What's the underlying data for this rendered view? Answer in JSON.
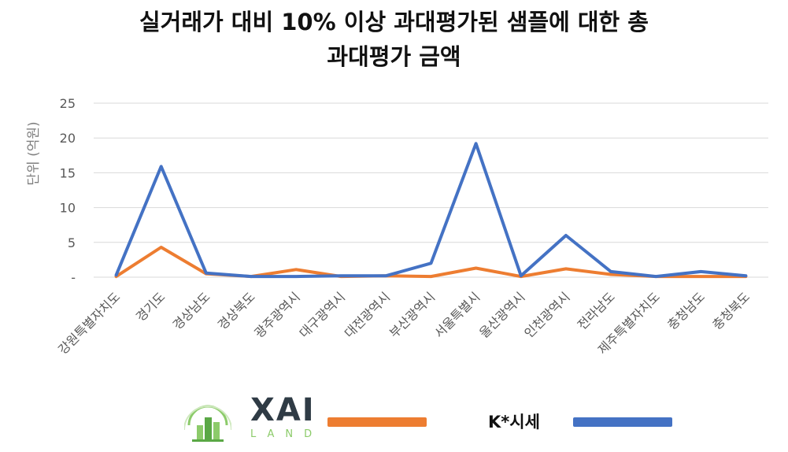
{
  "chart_data": {
    "type": "line",
    "title_line1": "실거래가 대비 10% 이상 과대평가된 샘플에 대한 총",
    "title_line2": "과대평가 금액",
    "ylabel": "단위 (억원)",
    "ylim": [
      0,
      25
    ],
    "yticks": [
      "-",
      "5",
      "10",
      "15",
      "20",
      "25"
    ],
    "grid": true,
    "categories": [
      "강원특별자치도",
      "경기도",
      "경상남도",
      "경상북도",
      "광주광역시",
      "대구광역시",
      "대전광역시",
      "부산광역시",
      "서울특별시",
      "울산광역시",
      "인천광역시",
      "전라남도",
      "제주특별자치도",
      "충청남도",
      "충청북도"
    ],
    "series": [
      {
        "name": "",
        "color": "#ed7d31",
        "values": [
          0.1,
          4.3,
          0.5,
          0.1,
          1.1,
          0.1,
          0.2,
          0.1,
          1.3,
          0.1,
          1.2,
          0.4,
          0.1,
          0.1,
          0.1
        ]
      },
      {
        "name": "K*시세",
        "color": "#4472c4",
        "values": [
          0.3,
          15.9,
          0.6,
          0.1,
          0.1,
          0.2,
          0.2,
          2.0,
          19.2,
          0.2,
          6.0,
          0.8,
          0.1,
          0.8,
          0.2
        ]
      }
    ],
    "legend": {
      "placement": "bottom",
      "logo_text": "XAI",
      "logo_sub": "LAND",
      "logo_color": "#8ccb6a"
    }
  }
}
